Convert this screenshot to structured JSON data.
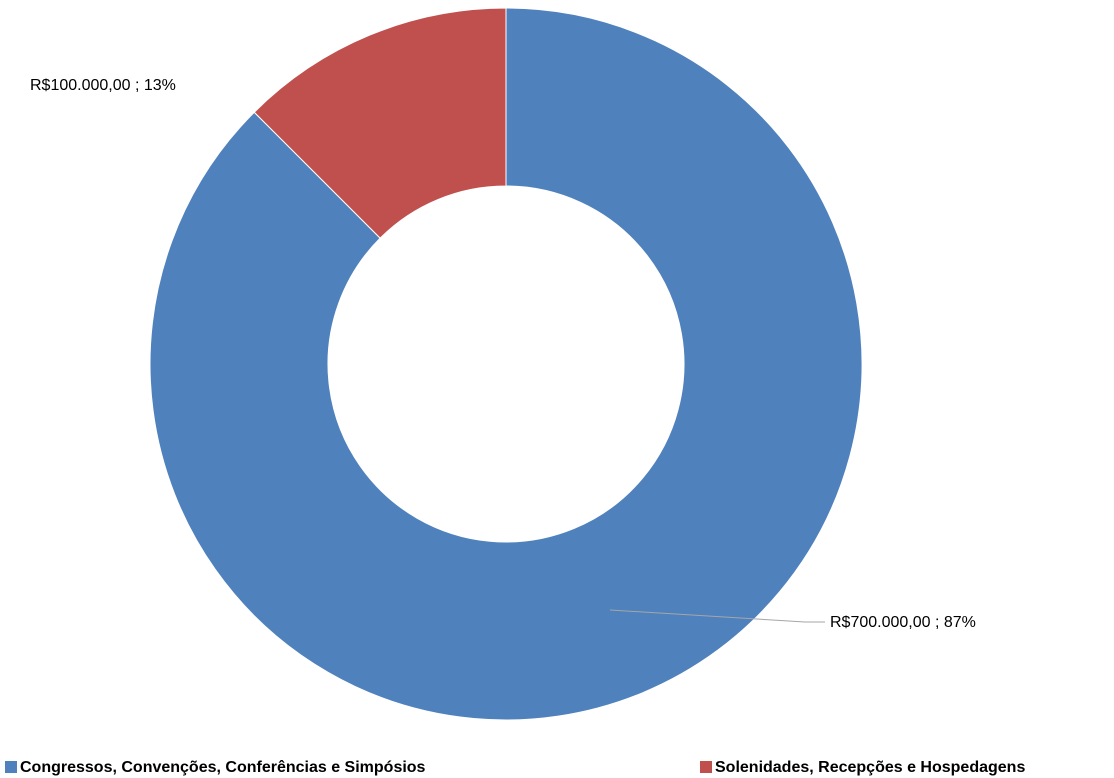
{
  "chart_data": {
    "type": "donut",
    "categories": [
      "Congressos, Convenções, Conferências e Simpósios",
      "Solenidades, Recepções e Hospedagens"
    ],
    "values": [
      700000,
      100000
    ],
    "value_labels": [
      "R$700.000,00 ; 87%",
      "R$100.000,00 ; 13%"
    ],
    "colors": [
      "#4f81bd",
      "#c0504d"
    ],
    "legend": "bottom"
  }
}
